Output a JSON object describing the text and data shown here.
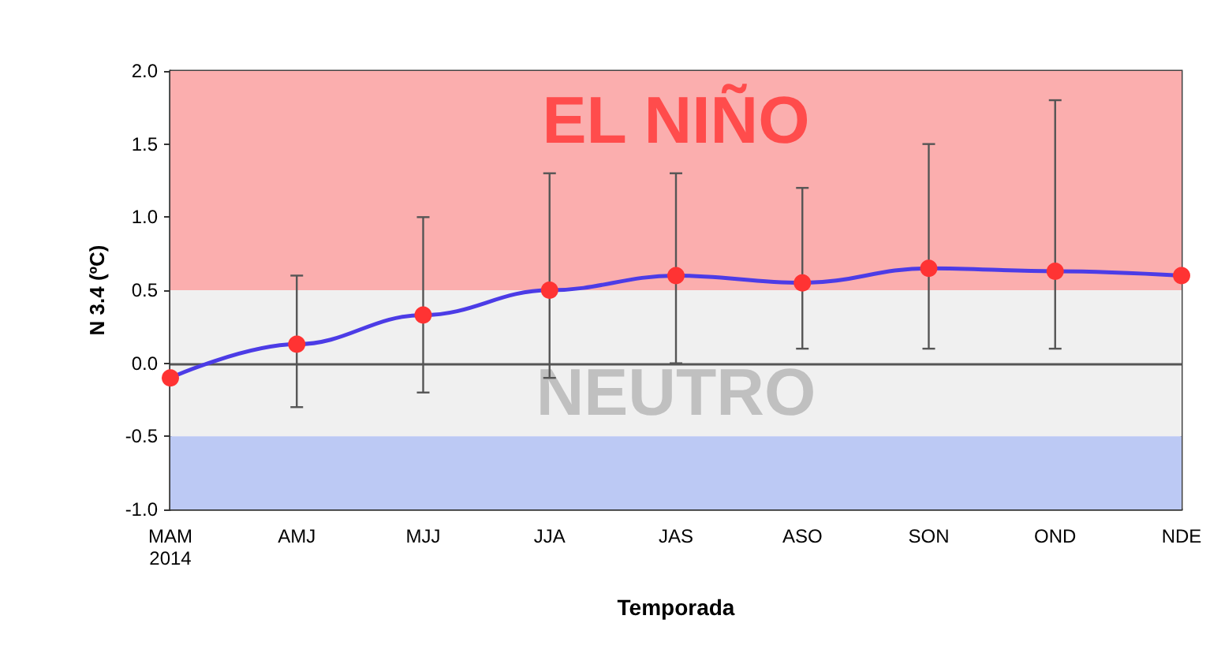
{
  "chart_data": {
    "type": "line",
    "xlabel": "Temporada",
    "ylabel": "N 3.4 (ºC)",
    "categories": [
      "MAM\n2014",
      "AMJ",
      "MJJ",
      "JJA",
      "JAS",
      "ASO",
      "SON",
      "OND",
      "NDE"
    ],
    "series": [
      {
        "color": "#4c3ce6",
        "colors": [
          "#ff3333",
          "#ff3333",
          "#ff3333",
          "#ff3333",
          "#ff3333",
          "#ff3333",
          "#ff3333",
          "#ff3333",
          "#ff3333"
        ],
        "values": [
          -0.1,
          0.13,
          0.33,
          0.5,
          0.6,
          0.55,
          0.65,
          0.63,
          0.6
        ],
        "errors": [
          null,
          [
            -0.3,
            0.6
          ],
          [
            -0.2,
            1.0
          ],
          [
            -0.1,
            1.3
          ],
          [
            0.0,
            1.3
          ],
          [
            0.1,
            1.2
          ],
          [
            0.1,
            1.5
          ],
          [
            0.1,
            1.8
          ],
          null
        ]
      }
    ],
    "ylim": [
      -1.0,
      2.0
    ],
    "yticks": [
      {
        "value": -1.0,
        "label": "-1.0"
      },
      {
        "value": -0.5,
        "label": "-0.5"
      },
      {
        "value": 0,
        "label": "0.0"
      },
      {
        "value": 0.5,
        "label": "0.5"
      },
      {
        "value": 1.0,
        "label": "1.0"
      },
      {
        "value": 1.5,
        "label": "1.5"
      },
      {
        "value": 2.0,
        "label": "2.0"
      }
    ],
    "bands": [
      {
        "axis": "y",
        "from": 0.5,
        "to": 2.0,
        "label": "EL NIÑO",
        "color": "#fbaeae"
      },
      {
        "axis": "y",
        "from": -0.5,
        "to": 0.5,
        "label": "NEUTRO",
        "color": "#f0f0f0"
      },
      {
        "axis": "y",
        "from": -1.0,
        "to": -0.5,
        "color": "#bcc9f4"
      }
    ],
    "ref_lines": [
      {
        "axis": "y",
        "value": 0
      }
    ],
    "marker": "circle",
    "line_style": "solid"
  }
}
